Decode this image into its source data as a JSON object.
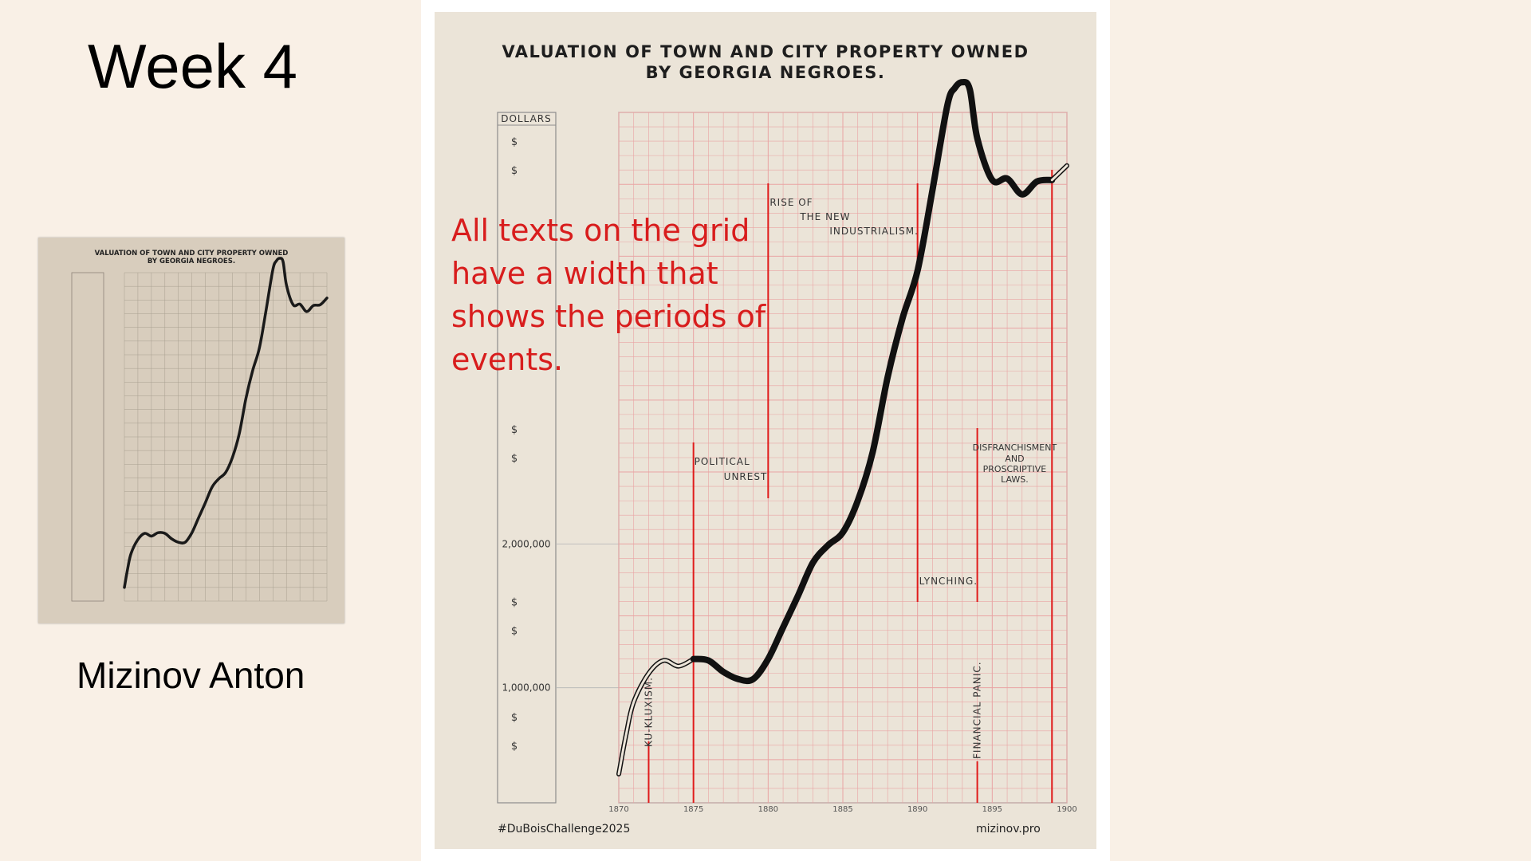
{
  "slide": {
    "week_title": "Week 4",
    "author": "Mizinov Anton",
    "annotation": "All texts on the grid have a width that shows the periods of events.",
    "hashtag": "#DuBoisChallenge2025",
    "website": "mizinov.pro"
  },
  "thumbnail": {
    "title_line1": "VALUATION OF TOWN AND CITY PROPERTY OWNED",
    "title_line2": "BY GEORGIA NEGROES."
  },
  "colors": {
    "background": "#f9f0e6",
    "poster": "#ebe4d8",
    "grid": "#e9a3a3",
    "event_line": "#e01b1b",
    "annotation": "#d81d1d",
    "curve": "#111111"
  },
  "chart_data": {
    "type": "line",
    "title_line1": "VALUATION OF TOWN AND CITY PROPERTY OWNED",
    "title_line2": "BY GEORGIA NEGROES.",
    "ylabel": "DOLLARS",
    "xlim": [
      1870,
      1900
    ],
    "x_ticks": [
      "1870",
      "1875",
      "1880",
      "1885",
      "1890",
      "1895",
      "1900"
    ],
    "y_tick_labels": [
      {
        "value": 2000000,
        "label": "2,000,000"
      },
      {
        "value": 1000000,
        "label": "1,000,000"
      }
    ],
    "dollar_marks": [
      4800000,
      4600000,
      2800000,
      2600000,
      1600000,
      1400000,
      800000,
      600000
    ],
    "ylim": [
      200000,
      5000000
    ],
    "series": [
      {
        "x": [
          1870,
          1870.5,
          1871,
          1872,
          1873,
          1874,
          1875,
          1876,
          1877,
          1878,
          1879,
          1880,
          1881,
          1882,
          1883,
          1884,
          1885,
          1886,
          1887,
          1888,
          1889,
          1890,
          1891,
          1892,
          1892.5,
          1893,
          1893.5,
          1894,
          1895,
          1896,
          1897,
          1898,
          1899,
          1900
        ],
        "values": [
          400000,
          680000,
          900000,
          1100000,
          1190000,
          1150000,
          1200000,
          1190000,
          1110000,
          1060000,
          1060000,
          1200000,
          1420000,
          1640000,
          1870000,
          1990000,
          2080000,
          2300000,
          2640000,
          3160000,
          3570000,
          3900000,
          4460000,
          5050000,
          5170000,
          5210000,
          5160000,
          4820000,
          4530000,
          4540000,
          4430000,
          4520000,
          4530000,
          4630000
        ]
      }
    ],
    "events": [
      {
        "label": "KU-KLUXISM.",
        "x_start": 1872,
        "x_end": 1872
      },
      {
        "label_line1": "POLITICAL",
        "label_line2": "UNREST",
        "x_start": 1875,
        "x_end": 1880
      },
      {
        "label_line1": "RISE OF",
        "label_line2": "THE NEW",
        "label_line3": "INDUSTRIALISM.",
        "x_start": 1880,
        "x_end": 1890
      },
      {
        "label": "LYNCHING.",
        "x_start": 1890,
        "x_end": 1894
      },
      {
        "label": "FINANCIAL PANIC.",
        "x_start": 1894,
        "x_end": 1894
      },
      {
        "label_line1": "DISFRANCHISMENT",
        "label_line2": "AND",
        "label_line3": "PROSCRIPTIVE",
        "label_line4": "LAWS.",
        "x_start": 1894,
        "x_end": 1899
      }
    ]
  }
}
